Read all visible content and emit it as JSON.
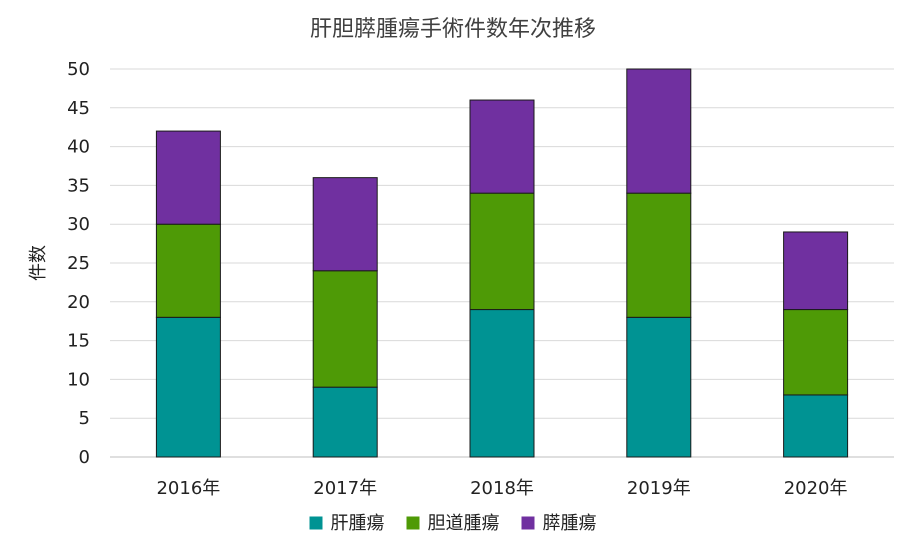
{
  "chart_data": {
    "type": "bar",
    "stacked": true,
    "title": "肝胆膵腫瘍手術件数年次推移",
    "xlabel": "",
    "ylabel": "件数",
    "categories": [
      "2016年",
      "2017年",
      "2018年",
      "2019年",
      "2020年"
    ],
    "series": [
      {
        "name": "肝腫瘍",
        "color": "#009393",
        "values": [
          18,
          9,
          19,
          18,
          8
        ]
      },
      {
        "name": "胆道腫瘍",
        "color": "#4e9a06",
        "values": [
          12,
          15,
          15,
          16,
          11
        ]
      },
      {
        "name": "膵腫瘍",
        "color": "#7030a0",
        "values": [
          12,
          12,
          12,
          16,
          10
        ]
      }
    ],
    "ylim": [
      0,
      50
    ],
    "yticks": [
      "0",
      "5",
      "10",
      "15",
      "20",
      "25",
      "30",
      "35",
      "40",
      "45",
      "50"
    ],
    "grid": true,
    "legend_position": "bottom"
  }
}
